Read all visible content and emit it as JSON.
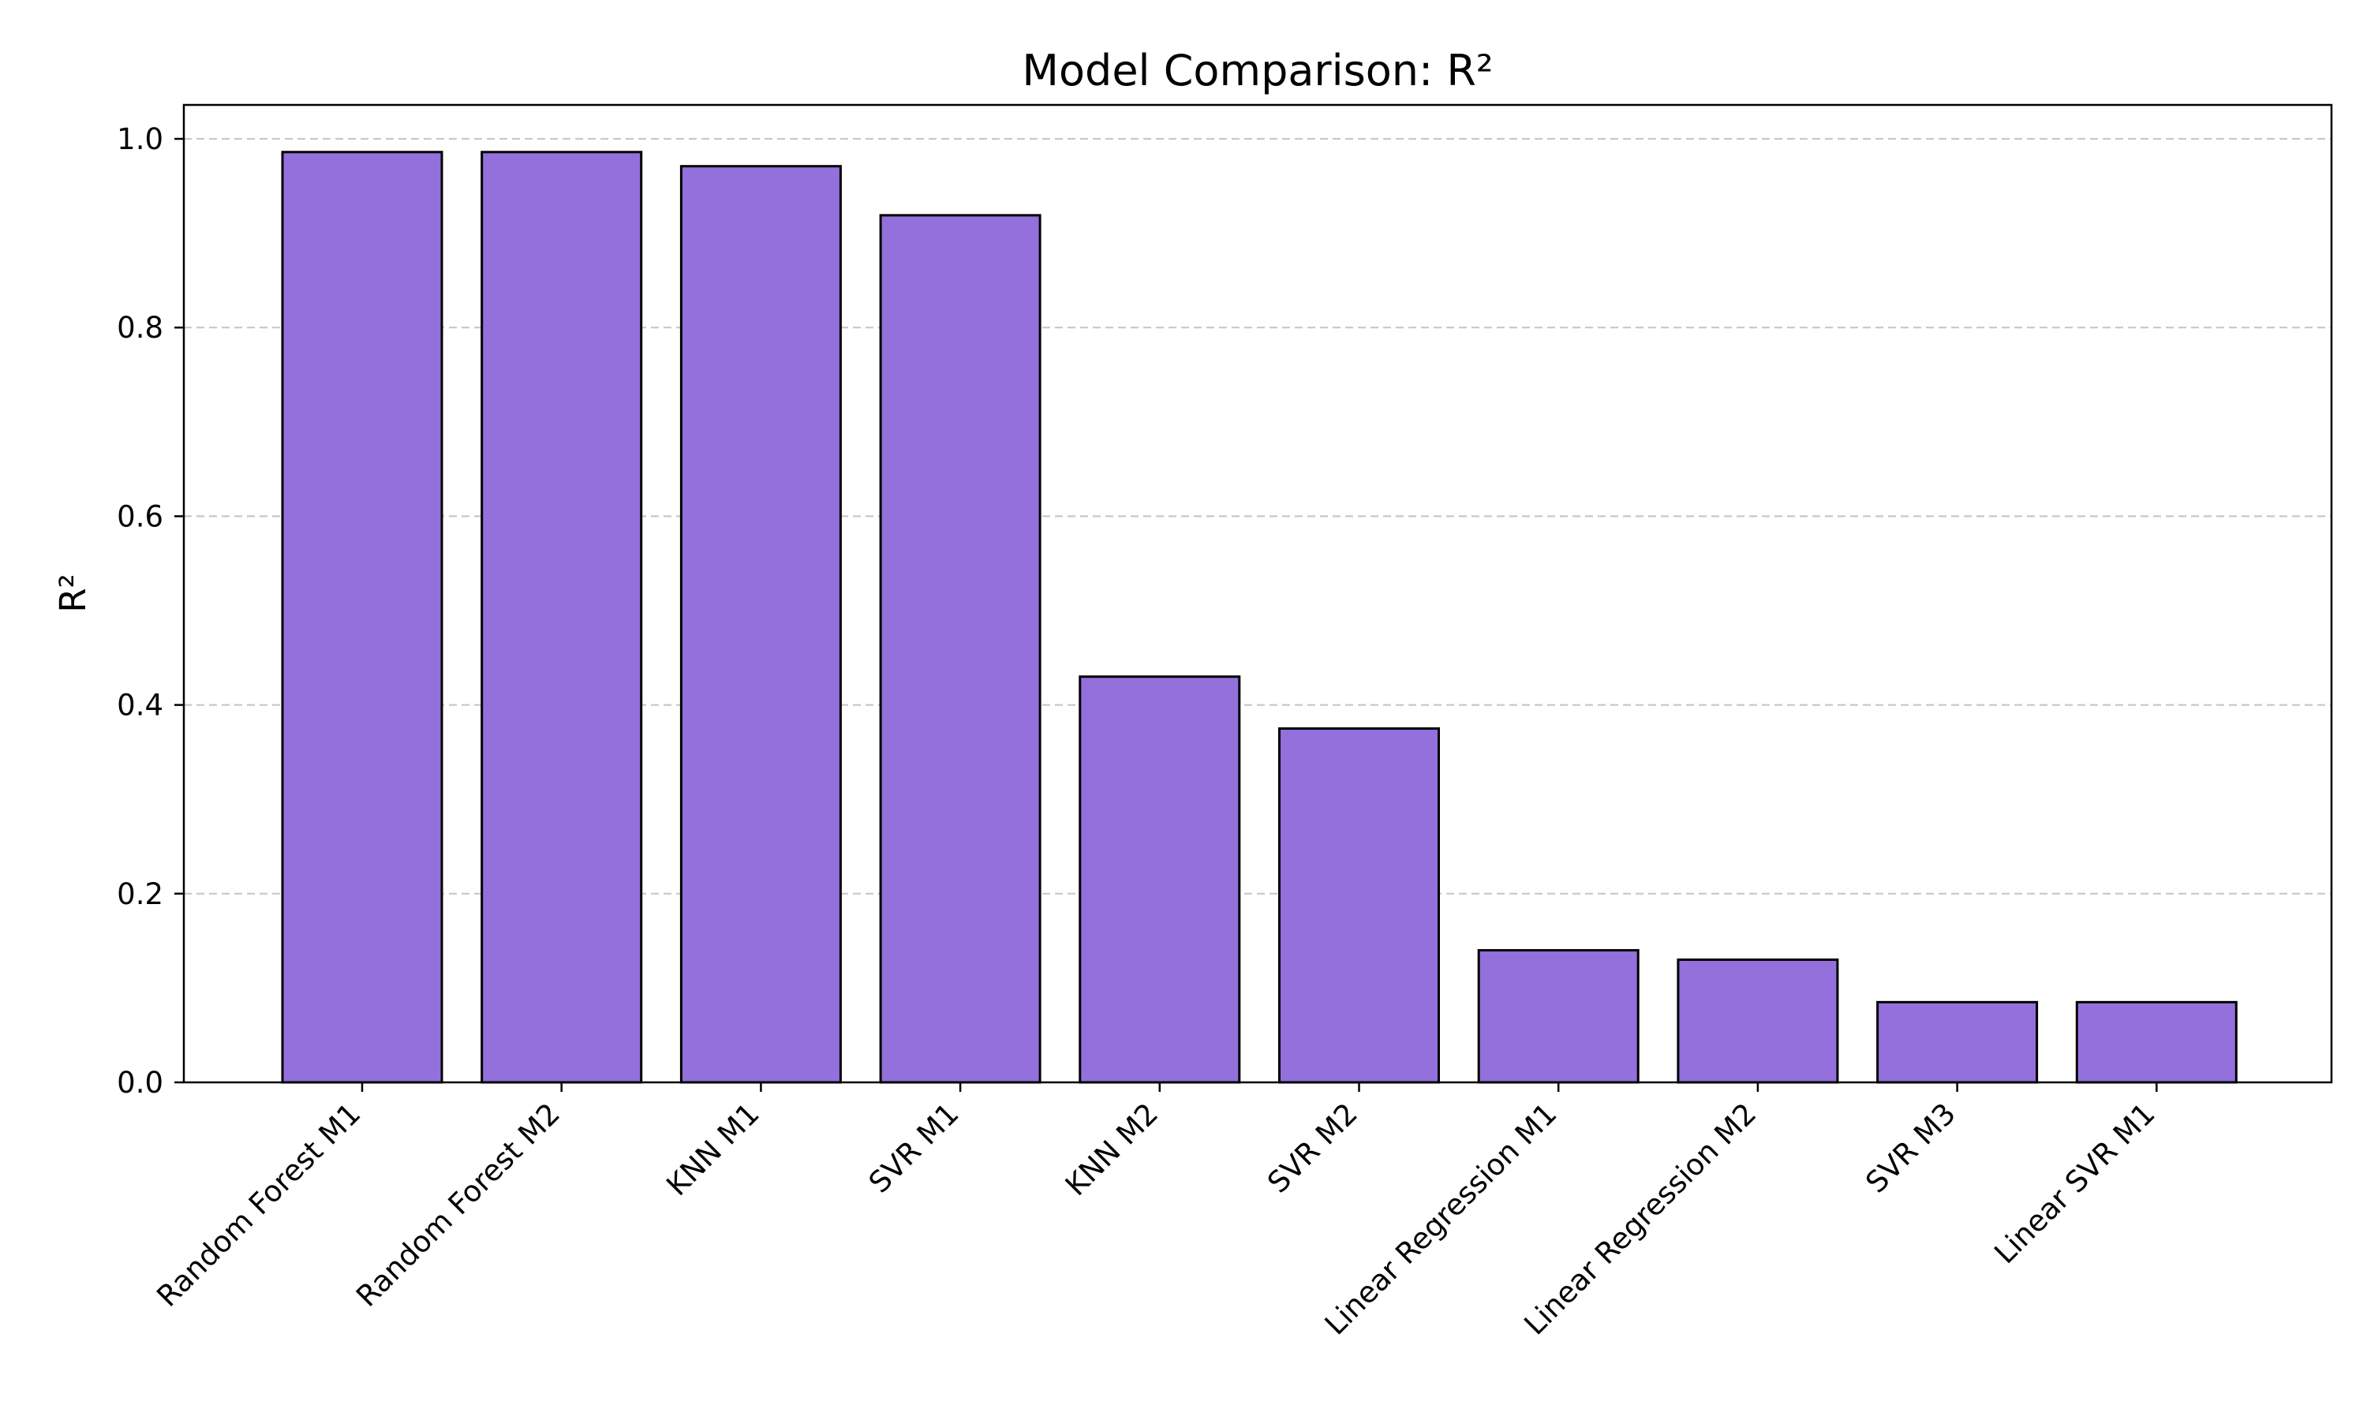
{
  "chart_data": {
    "type": "bar",
    "title": "Model Comparison: R²",
    "xlabel": "",
    "ylabel": "R²",
    "categories": [
      "Random Forest M1",
      "Random Forest M2",
      "KNN M1",
      "SVR M1",
      "KNN M2",
      "SVR M2",
      "Linear Regression M1",
      "Linear Regression M2",
      "SVR M3",
      "Linear SVR M1"
    ],
    "values": [
      0.986,
      0.986,
      0.971,
      0.919,
      0.43,
      0.375,
      0.14,
      0.13,
      0.085,
      0.085
    ],
    "ylim": [
      0,
      1.035
    ],
    "yticks": [
      0.0,
      0.2,
      0.4,
      0.6,
      0.8,
      1.0
    ],
    "ytick_labels": [
      "0.0",
      "0.2",
      "0.4",
      "0.6",
      "0.8",
      "1.0"
    ],
    "grid": "y dashed",
    "legend": "none",
    "colors": {
      "bar_fill": "#9370DB",
      "bar_edge": "#000000",
      "grid": "#c8c8c8",
      "axis": "#000000"
    }
  }
}
